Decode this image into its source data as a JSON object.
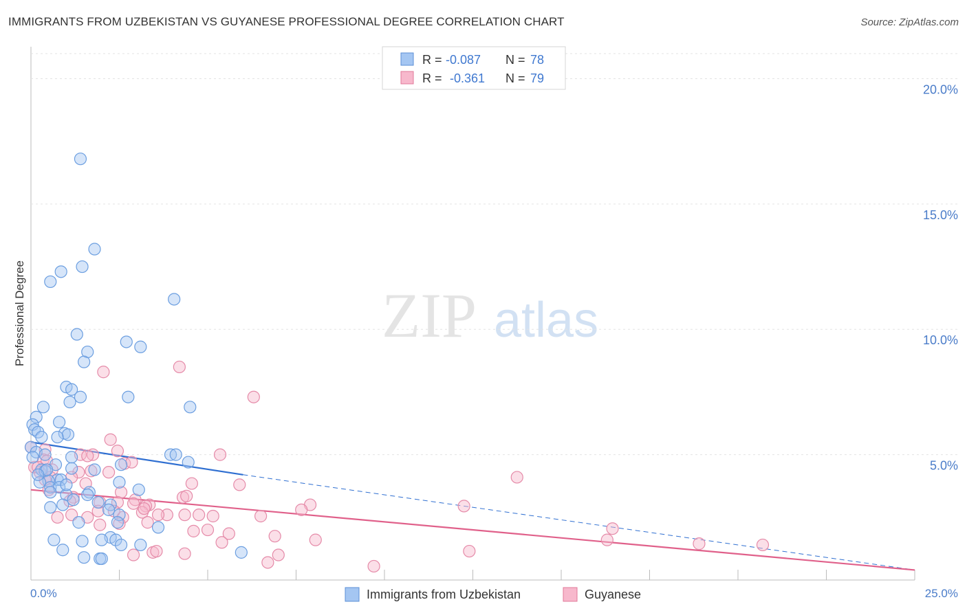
{
  "chart_data": {
    "type": "scatter",
    "title": "IMMIGRANTS FROM UZBEKISTAN VS GUYANESE PROFESSIONAL DEGREE CORRELATION CHART",
    "source": "Source: ZipAtlas.com",
    "watermark_left": "ZIP",
    "watermark_right": "atlas",
    "xlabel": "",
    "ylabel": "Professional Degree",
    "xlim": [
      0,
      25
    ],
    "ylim": [
      0,
      21
    ],
    "x_tick_labels": {
      "min": "0.0%",
      "max": "25.0%"
    },
    "y_ticks": [
      5,
      10,
      15,
      20
    ],
    "y_tick_labels": [
      "5.0%",
      "10.0%",
      "15.0%",
      "20.0%"
    ],
    "legend": [
      {
        "name": "Immigrants from Uzbekistan",
        "r_label": "R =",
        "r_value": "-0.087",
        "n_label": "N =",
        "n_value": "78",
        "color": "#a4c6f2",
        "stroke": "#5b8fd6",
        "line": "#2f6fd1"
      },
      {
        "name": "Guyanese",
        "r_label": "R =",
        "r_value": "-0.361",
        "n_label": "N =",
        "n_value": "79",
        "color": "#f7b8cc",
        "stroke": "#e07898",
        "line": "#e0608a"
      }
    ],
    "series": [
      {
        "name": "Immigrants from Uzbekistan",
        "trend": {
          "x0": 0,
          "y0": 5.5,
          "x1": 6,
          "y1": 4.2,
          "dash_to_x": 25,
          "dash_to_y": 0.4
        },
        "points": [
          [
            1.4,
            16.8
          ],
          [
            1.8,
            13.2
          ],
          [
            1.45,
            12.5
          ],
          [
            0.85,
            12.3
          ],
          [
            0.55,
            11.9
          ],
          [
            4.05,
            11.2
          ],
          [
            1.3,
            9.8
          ],
          [
            1.6,
            9.1
          ],
          [
            2.7,
            9.5
          ],
          [
            3.1,
            9.3
          ],
          [
            1.5,
            8.7
          ],
          [
            1.0,
            7.7
          ],
          [
            1.15,
            7.6
          ],
          [
            1.4,
            7.3
          ],
          [
            2.75,
            7.3
          ],
          [
            1.1,
            7.1
          ],
          [
            0.35,
            6.9
          ],
          [
            4.5,
            6.9
          ],
          [
            0.15,
            6.5
          ],
          [
            0.05,
            6.2
          ],
          [
            0.1,
            6.0
          ],
          [
            0.8,
            6.3
          ],
          [
            0.2,
            5.9
          ],
          [
            0.95,
            5.85
          ],
          [
            1.05,
            5.8
          ],
          [
            0.3,
            5.7
          ],
          [
            0.75,
            5.7
          ],
          [
            0.0,
            5.3
          ],
          [
            0.15,
            5.1
          ],
          [
            0.4,
            5.0
          ],
          [
            0.05,
            4.9
          ],
          [
            3.95,
            5.0
          ],
          [
            4.1,
            5.0
          ],
          [
            1.15,
            4.9
          ],
          [
            2.55,
            4.6
          ],
          [
            4.45,
            4.7
          ],
          [
            0.7,
            4.6
          ],
          [
            0.3,
            4.4
          ],
          [
            0.4,
            4.35
          ],
          [
            0.45,
            4.4
          ],
          [
            1.15,
            4.45
          ],
          [
            1.8,
            4.4
          ],
          [
            0.75,
            4.0
          ],
          [
            0.5,
            3.95
          ],
          [
            0.85,
            4.0
          ],
          [
            2.5,
            3.9
          ],
          [
            0.55,
            3.7
          ],
          [
            0.8,
            3.7
          ],
          [
            0.55,
            3.5
          ],
          [
            1.0,
            3.4
          ],
          [
            1.65,
            3.5
          ],
          [
            3.05,
            3.6
          ],
          [
            1.2,
            3.2
          ],
          [
            1.9,
            3.1
          ],
          [
            2.25,
            3.0
          ],
          [
            0.9,
            3.0
          ],
          [
            0.55,
            2.9
          ],
          [
            2.5,
            2.6
          ],
          [
            1.35,
            2.3
          ],
          [
            2.45,
            2.3
          ],
          [
            3.6,
            2.1
          ],
          [
            2.25,
            1.7
          ],
          [
            2.4,
            1.6
          ],
          [
            0.65,
            1.6
          ],
          [
            1.45,
            1.55
          ],
          [
            2.0,
            1.6
          ],
          [
            2.55,
            1.4
          ],
          [
            3.1,
            1.4
          ],
          [
            0.9,
            1.2
          ],
          [
            5.95,
            1.1
          ],
          [
            1.5,
            0.9
          ],
          [
            1.95,
            0.85
          ],
          [
            2.0,
            0.85
          ],
          [
            1.0,
            3.8
          ],
          [
            0.25,
            3.9
          ],
          [
            0.2,
            4.2
          ],
          [
            1.6,
            3.4
          ],
          [
            2.2,
            2.8
          ]
        ]
      },
      {
        "name": "Guyanese",
        "trend": {
          "x0": 0,
          "y0": 3.6,
          "x1": 25,
          "y1": 0.4
        },
        "points": [
          [
            4.2,
            8.5
          ],
          [
            2.05,
            8.3
          ],
          [
            6.3,
            7.3
          ],
          [
            0.0,
            5.3
          ],
          [
            2.25,
            5.6
          ],
          [
            0.4,
            5.2
          ],
          [
            2.45,
            5.15
          ],
          [
            5.35,
            5.0
          ],
          [
            1.4,
            5.0
          ],
          [
            1.75,
            5.0
          ],
          [
            1.6,
            4.95
          ],
          [
            0.35,
            4.8
          ],
          [
            0.45,
            4.75
          ],
          [
            2.65,
            4.65
          ],
          [
            0.1,
            4.5
          ],
          [
            0.6,
            4.4
          ],
          [
            0.25,
            4.3
          ],
          [
            1.35,
            4.3
          ],
          [
            2.2,
            4.3
          ],
          [
            1.15,
            4.1
          ],
          [
            0.55,
            4.1
          ],
          [
            13.75,
            4.1
          ],
          [
            1.55,
            3.85
          ],
          [
            4.55,
            3.85
          ],
          [
            5.9,
            3.8
          ],
          [
            0.5,
            3.6
          ],
          [
            2.55,
            3.5
          ],
          [
            1.2,
            3.3
          ],
          [
            2.95,
            3.2
          ],
          [
            4.3,
            3.3
          ],
          [
            4.4,
            3.35
          ],
          [
            1.95,
            3.1
          ],
          [
            2.45,
            3.1
          ],
          [
            2.9,
            3.05
          ],
          [
            3.35,
            3.0
          ],
          [
            3.25,
            2.95
          ],
          [
            7.9,
            3.0
          ],
          [
            12.25,
            2.95
          ],
          [
            3.15,
            2.7
          ],
          [
            3.85,
            2.6
          ],
          [
            2.6,
            2.5
          ],
          [
            3.6,
            2.6
          ],
          [
            4.75,
            2.6
          ],
          [
            4.35,
            2.6
          ],
          [
            5.15,
            2.55
          ],
          [
            6.5,
            2.55
          ],
          [
            1.6,
            2.5
          ],
          [
            0.75,
            2.5
          ],
          [
            1.15,
            2.6
          ],
          [
            1.9,
            2.75
          ],
          [
            2.35,
            2.75
          ],
          [
            7.65,
            2.8
          ],
          [
            1.95,
            2.2
          ],
          [
            2.5,
            2.25
          ],
          [
            3.3,
            2.3
          ],
          [
            5.0,
            2.0
          ],
          [
            5.6,
            1.85
          ],
          [
            6.9,
            1.75
          ],
          [
            8.05,
            1.6
          ],
          [
            16.45,
            2.05
          ],
          [
            16.3,
            1.6
          ],
          [
            18.9,
            1.45
          ],
          [
            20.7,
            1.4
          ],
          [
            5.4,
            1.5
          ],
          [
            3.45,
            1.1
          ],
          [
            3.55,
            1.15
          ],
          [
            4.35,
            1.05
          ],
          [
            7.0,
            1.0
          ],
          [
            12.4,
            1.15
          ],
          [
            6.7,
            0.7
          ],
          [
            9.7,
            0.55
          ],
          [
            2.9,
            1.0
          ],
          [
            0.4,
            4.0
          ],
          [
            1.1,
            3.15
          ],
          [
            2.85,
            4.7
          ],
          [
            0.2,
            4.5
          ],
          [
            1.7,
            4.35
          ],
          [
            3.2,
            2.85
          ],
          [
            4.6,
            1.95
          ]
        ]
      }
    ]
  }
}
